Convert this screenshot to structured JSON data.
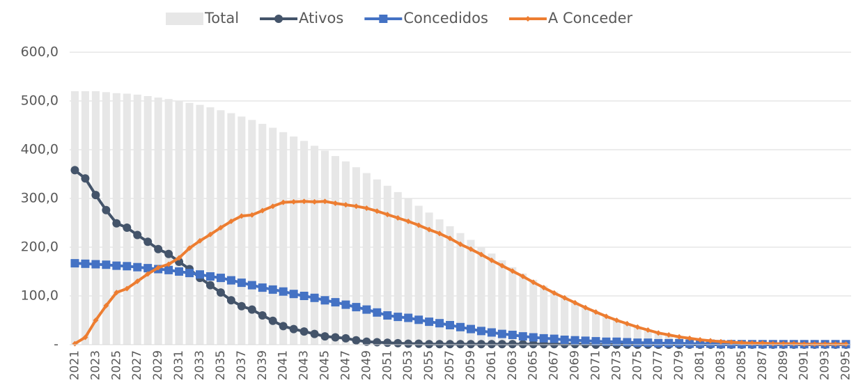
{
  "chart_data": {
    "type": "bar",
    "categories": [
      "2021",
      null,
      "2023",
      null,
      "2025",
      null,
      "2027",
      null,
      "2029",
      null,
      "2031",
      null,
      "2033",
      null,
      "2035",
      null,
      "2037",
      null,
      "2039",
      null,
      "2041",
      null,
      "2043",
      null,
      "2045",
      null,
      "2047",
      null,
      "2049",
      null,
      "2051",
      null,
      "2053",
      null,
      "2055",
      null,
      "2057",
      null,
      "2059",
      null,
      "2061",
      null,
      "2063",
      null,
      "2065",
      null,
      "2067",
      null,
      "2069",
      null,
      "2071",
      null,
      "2073",
      null,
      "2075",
      null,
      "2077",
      null,
      "2079",
      null,
      "2081",
      null,
      "2083",
      null,
      "2085",
      null,
      "2087",
      null,
      "2089",
      null,
      "2091",
      null,
      "2093",
      null,
      "2095"
    ],
    "series": [
      {
        "name": "Total",
        "type": "bar",
        "color": "#e7e7e7",
        "values": [
          520,
          520,
          520,
          518,
          516,
          515,
          513,
          510,
          507,
          504,
          500,
          496,
          492,
          487,
          481,
          475,
          468,
          461,
          453,
          445,
          436,
          427,
          418,
          408,
          398,
          387,
          376,
          364,
          352,
          339,
          326,
          313,
          299,
          285,
          271,
          257,
          243,
          229,
          215,
          201,
          187,
          173,
          159,
          146,
          133,
          121,
          109,
          98,
          87,
          77,
          68,
          59,
          51,
          44,
          37,
          31,
          26,
          21,
          17,
          14,
          11,
          9,
          7,
          6,
          5,
          4,
          4,
          3,
          3,
          3,
          2,
          2,
          2,
          2,
          2
        ]
      },
      {
        "name": "Ativos",
        "type": "line",
        "marker": "circle",
        "color": "#44546a",
        "values": [
          358,
          341,
          307,
          276,
          249,
          240,
          225,
          211,
          196,
          186,
          170,
          155,
          137,
          122,
          107,
          91,
          79,
          72,
          60,
          49,
          38,
          32,
          27,
          22,
          17,
          15,
          13,
          9,
          6,
          5,
          4,
          3,
          2,
          2,
          1,
          1,
          1,
          1,
          1,
          1,
          1,
          1,
          1,
          1,
          1,
          1,
          1,
          1,
          1,
          1,
          0,
          0,
          0,
          0,
          0,
          0,
          0,
          0,
          0,
          0,
          0,
          0,
          0,
          0,
          0,
          0,
          0,
          0,
          0,
          0,
          0,
          0,
          0,
          0,
          0
        ]
      },
      {
        "name": "Concedidos",
        "type": "line",
        "marker": "square",
        "color": "#4472c4",
        "values": [
          167,
          166,
          165,
          164,
          162,
          161,
          159,
          157,
          155,
          153,
          150,
          147,
          144,
          140,
          137,
          132,
          127,
          122,
          117,
          113,
          109,
          104,
          100,
          96,
          91,
          87,
          82,
          77,
          72,
          66,
          60,
          57,
          55,
          51,
          47,
          44,
          40,
          36,
          32,
          28,
          25,
          22,
          20,
          17,
          15,
          13,
          12,
          10,
          9,
          8,
          7,
          6,
          6,
          5,
          4,
          4,
          3,
          3,
          3,
          2,
          2,
          2,
          1,
          1,
          1,
          1,
          1,
          1,
          1,
          1,
          1,
          1,
          1,
          1,
          1
        ]
      },
      {
        "name": "A Conceder",
        "type": "line",
        "marker": "diamond",
        "color": "#ed7d31",
        "values": [
          2,
          15,
          50,
          80,
          107,
          115,
          130,
          145,
          158,
          165,
          178,
          198,
          213,
          226,
          240,
          253,
          264,
          266,
          275,
          284,
          292,
          293,
          294,
          293,
          294,
          290,
          287,
          284,
          280,
          274,
          267,
          260,
          253,
          245,
          236,
          228,
          218,
          206,
          196,
          185,
          173,
          162,
          151,
          140,
          128,
          117,
          106,
          96,
          86,
          76,
          67,
          58,
          50,
          43,
          36,
          30,
          24,
          20,
          16,
          13,
          10,
          8,
          6,
          5,
          4,
          3,
          3,
          2,
          2,
          2,
          1,
          1,
          1,
          1,
          1
        ]
      }
    ],
    "ylim": [
      0,
      600
    ],
    "yticks": [
      {
        "value": 0,
        "label": "-"
      },
      {
        "value": 100,
        "label": "100,0"
      },
      {
        "value": 200,
        "label": "200,0"
      },
      {
        "value": 300,
        "label": "300,0"
      },
      {
        "value": 400,
        "label": "400,0"
      },
      {
        "value": 500,
        "label": "500,0"
      },
      {
        "value": 600,
        "label": "600,0"
      }
    ],
    "grid": true,
    "legend": "top"
  }
}
